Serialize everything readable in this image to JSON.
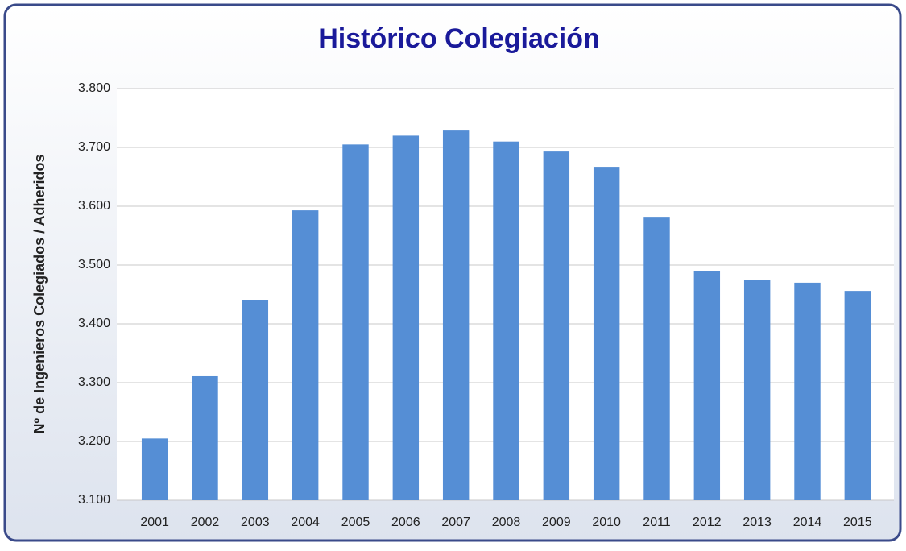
{
  "chart_data": {
    "type": "bar",
    "title": "Histórico Colegiación",
    "y_label": "Nº de Ingenieros Colegiados / Adheridos",
    "categories": [
      "2001",
      "2002",
      "2003",
      "2004",
      "2005",
      "2006",
      "2007",
      "2008",
      "2009",
      "2010",
      "2011",
      "2012",
      "2013",
      "2014",
      "2015"
    ],
    "values": [
      3205,
      3311,
      3440,
      3593,
      3705,
      3720,
      3730,
      3710,
      3693,
      3667,
      3582,
      3490,
      3474,
      3470,
      3456
    ],
    "color": "#558ed5",
    "ylim": [
      3100,
      3800
    ],
    "yticks": [
      {
        "value": 3100,
        "label": "3.100"
      },
      {
        "value": 3200,
        "label": "3.200"
      },
      {
        "value": 3300,
        "label": "3.300"
      },
      {
        "value": 3400,
        "label": "3.400"
      },
      {
        "value": 3500,
        "label": "3.500"
      },
      {
        "value": 3600,
        "label": "3.600"
      },
      {
        "value": 3700,
        "label": "3.700"
      },
      {
        "value": 3800,
        "label": "3.800"
      }
    ],
    "grid": true
  }
}
